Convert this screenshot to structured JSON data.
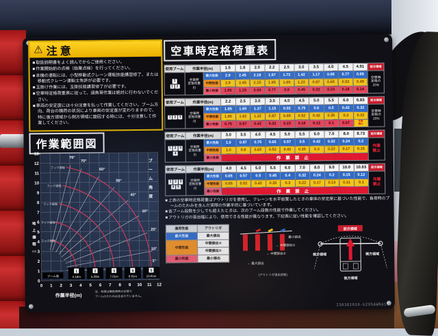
{
  "warning": {
    "title": "注意",
    "items": [
      "取扱説明書をよく読んでからご使用ください。",
      "作業開始前の点検（始業点検）を行ってください。",
      "本機の運転には、小型移動式クレーン運転技能講習修了、または移動式クレーン運転士免許が必要です。",
      "玉掛け作業には、玉掛技能講習修了が必要です。",
      "空車時定格荷重表に従って、過負荷作業は絶対に行わないでください。",
      "車両の安定度には十分注意を払って作業してください。ブーム方向、荷台の積荷の状況により車両の安定度が変わりますので、特に後方領域から側方領域に旋回する時には、十分注意して作業してください。"
    ]
  },
  "range_diagram": {
    "title": "作業範囲図",
    "xlabel": "作業半径(m)",
    "ylabel_chars": "地上揚程",
    "ylabel_unit": "(m)",
    "angle_axis_label": "ブーム角度",
    "hook_label": "フック揚程",
    "boom_row_label": "ブーム長",
    "x_max": 12,
    "y_max": 13,
    "pivot_r": 0.4,
    "pivot_h": 1.0,
    "angles": [
      76,
      70,
      60,
      50,
      40,
      30,
      20,
      10,
      1
    ],
    "booms": [
      {
        "no": "1",
        "length": "3.18m"
      },
      {
        "no": "2",
        "length": "5.09m"
      },
      {
        "no": "3",
        "length": "7.01m"
      },
      {
        "no": "4",
        "length": "8.91m"
      },
      {
        "no": "5",
        "length": "10.81m"
      }
    ],
    "note_lines": [
      "注：本図は無負荷時の状態で",
      "ブームのたわみは含まれていません。"
    ]
  },
  "chart_data": {
    "type": "line",
    "title": "作業範囲図",
    "xlabel": "作業半径(m)",
    "ylabel": "地上揚程(m)",
    "xlim": [
      0,
      12
    ],
    "ylim": [
      0,
      13
    ],
    "grid": true,
    "series_note": "red arcs = boom tip path per boom length, white radial lines = boom angle",
    "boom_lengths_m": [
      3.18,
      5.09,
      7.01,
      8.91,
      10.81
    ],
    "boom_angles_deg": [
      76,
      70,
      60,
      50,
      40,
      30,
      20,
      10,
      1
    ]
  },
  "load_table": {
    "title": "空車時定格荷重表",
    "col_boom": "使用ブーム",
    "col_radius": "作業半径(m)",
    "load_label_lines": [
      "空車時",
      "定格荷重",
      "(t)"
    ],
    "perf_max": "最大性能",
    "perf_mid": "中間性能",
    "perf_min": "最小性能",
    "front_area_label": "前方領域",
    "ban_label": "作業禁止",
    "tables": [
      {
        "boom_rows": [
          [
            "1"
          ],
          [
            "1",
            "2"
          ]
        ],
        "radii": [
          "1.5",
          "1.8",
          "2.0",
          "2.2",
          "2.5",
          "3.0",
          "3.5",
          "4.0",
          "4.5",
          "4.91"
        ],
        "max": [
          "2.9",
          "2.45",
          "2.18",
          "1.97",
          "1.72",
          "1.42",
          "1.17",
          "0.95",
          "0.77",
          "0.65"
        ],
        "mid": [
          "2.9",
          "2.45",
          "2.15",
          "1.95",
          "1.65",
          "1.22",
          "0.87",
          "0.65",
          "0.52",
          "0.45"
        ],
        "min": [
          "1.55",
          "1.15",
          "0.93",
          "0.77",
          "0.6",
          "0.45",
          "0.32",
          "0.23",
          "0.18",
          "0.14"
        ],
        "min_banner": false,
        "min_last_ban": false,
        "right_lines": [
          "空車時",
          "定格の",
          "25%"
        ],
        "right_danger": false
      },
      {
        "boom_rows": [
          [
            "1",
            "2",
            "3"
          ]
        ],
        "radii": [
          "2.2",
          "2.5",
          "3.0",
          "3.5",
          "4.0",
          "4.5",
          "5.0",
          "5.5",
          "6.0",
          "6.83"
        ],
        "max": [
          "1.85",
          "1.65",
          "1.37",
          "1.15",
          "0.92",
          "0.75",
          "0.6",
          "0.5",
          "0.42",
          "0.32"
        ],
        "mid": [
          "1.85",
          "1.62",
          "1.22",
          "0.87",
          "0.65",
          "0.52",
          "0.42",
          "0.35",
          "0.3",
          "0.22"
        ],
        "min": [
          "0.75",
          "0.57",
          "0.42",
          "0.32",
          "0.23",
          "0.18",
          "0.13",
          "0.1",
          "0.07"
        ],
        "min_banner": false,
        "min_last_ban": true,
        "right_lines": [
          "空車時",
          "定格の",
          "25%"
        ],
        "right_danger": false
      },
      {
        "boom_rows": [
          [
            "1",
            "2",
            "3"
          ],
          [
            "4"
          ]
        ],
        "radii": [
          "3.0",
          "3.5",
          "4.0",
          "4.5",
          "5.0",
          "5.5",
          "6.0",
          "7.0",
          "8.0",
          "8.73"
        ],
        "max": [
          "1.0",
          "0.87",
          "0.75",
          "0.65",
          "0.57",
          "0.5",
          "0.42",
          "0.32",
          "0.24",
          "0.2"
        ],
        "mid": [
          "1.0",
          "0.8",
          "0.65",
          "0.52",
          "0.42",
          "0.35",
          "0.3",
          "0.22",
          "0.17",
          "0.15"
        ],
        "min": [],
        "min_banner": true,
        "min_last_ban": false,
        "right_lines": [
          "作業",
          "禁止"
        ],
        "right_danger": true
      },
      {
        "boom_rows": [
          [
            "1",
            "2",
            "3"
          ],
          [
            "4",
            "5"
          ]
        ],
        "radii": [
          "4.0",
          "4.5",
          "5.0",
          "5.5",
          "6.0",
          "7.0",
          "8.0",
          "9.0",
          "10.0",
          "10.63"
        ],
        "max": [
          "0.65",
          "0.57",
          "0.5",
          "0.45",
          "0.4",
          "0.32",
          "0.24",
          "0.2",
          "0.15",
          "0.12"
        ],
        "mid": [
          "0.65",
          "0.52",
          "0.42",
          "0.35",
          "0.3",
          "0.22",
          "0.17",
          "0.13",
          "0.11",
          "0.1"
        ],
        "min": [],
        "min_banner": true,
        "min_last_ban": false,
        "right_lines": [
          "作業",
          "禁止"
        ],
        "right_danger": true
      }
    ],
    "notes": [
      "上表の空車時定格荷重はアウトリガを使用し、クレーンを水平設置したときの車体の安定度に基づいた性能で、負荷時のブームのたわみを含んだ実際の作業半径に基づいています。",
      "各ブーム段数を少しでも超えたときは、次のブーム段数の性能で作業してください。",
      "アウトリガの張出幅により、使用できる性能が異なります。下記表に従い性能を確認してください。"
    ]
  },
  "legend_table": {
    "perf_header": "適用性能",
    "outrigger_header": "アウトリガ",
    "rows": [
      {
        "perf": "最大性能",
        "cls": "pmax",
        "span": 1,
        "out": "最大張出"
      },
      {
        "perf": "中間性能",
        "cls": "pmid",
        "span": 2,
        "out": "中間張出②"
      },
      {
        "out": "中間張出①"
      },
      {
        "perf": "最小性能",
        "cls": "pmin",
        "span": 1,
        "out": "最小張出"
      }
    ]
  },
  "outrigger_diagram": {
    "label_min": "最小張出",
    "label_mid1": "中間張出①",
    "label_mid2": "中間張出②",
    "label_max": "最大張出",
    "caption": "(アウトリガ張出状態)"
  },
  "area_diagram": {
    "front": "前方領域",
    "side": "側方領域",
    "rear": "後方領域"
  },
  "serial": "236381010-G295AWRA1",
  "colors": {
    "warning_yellow": "#eab000",
    "perf_max_blue": "#2e6bc8",
    "perf_mid_yellow": "#f2c418",
    "perf_mid_orange": "#f09020",
    "perf_min_red": "#e8435a",
    "ban_red": "#e01830",
    "front_area_red": "#c81e2e"
  }
}
